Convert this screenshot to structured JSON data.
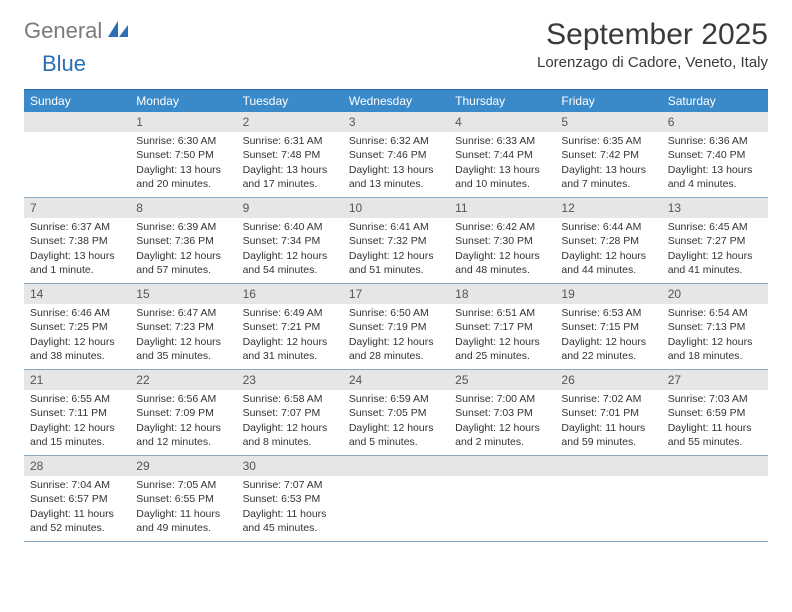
{
  "logo": {
    "text_gray": "General",
    "text_blue": "Blue"
  },
  "title": "September 2025",
  "location": "Lorenzago di Cadore, Veneto, Italy",
  "colors": {
    "header_bg": "#3a89c9",
    "header_text": "#ffffff",
    "daynum_bg": "#e6e6e6",
    "cell_border": "#8aa7c2",
    "logo_gray": "#7a7a7a",
    "logo_blue": "#2a6fb5"
  },
  "day_headers": [
    "Sunday",
    "Monday",
    "Tuesday",
    "Wednesday",
    "Thursday",
    "Friday",
    "Saturday"
  ],
  "leading_blanks": 1,
  "trailing_blanks": 4,
  "days": [
    {
      "n": "1",
      "sunrise": "Sunrise: 6:30 AM",
      "sunset": "Sunset: 7:50 PM",
      "daylight": "Daylight: 13 hours and 20 minutes."
    },
    {
      "n": "2",
      "sunrise": "Sunrise: 6:31 AM",
      "sunset": "Sunset: 7:48 PM",
      "daylight": "Daylight: 13 hours and 17 minutes."
    },
    {
      "n": "3",
      "sunrise": "Sunrise: 6:32 AM",
      "sunset": "Sunset: 7:46 PM",
      "daylight": "Daylight: 13 hours and 13 minutes."
    },
    {
      "n": "4",
      "sunrise": "Sunrise: 6:33 AM",
      "sunset": "Sunset: 7:44 PM",
      "daylight": "Daylight: 13 hours and 10 minutes."
    },
    {
      "n": "5",
      "sunrise": "Sunrise: 6:35 AM",
      "sunset": "Sunset: 7:42 PM",
      "daylight": "Daylight: 13 hours and 7 minutes."
    },
    {
      "n": "6",
      "sunrise": "Sunrise: 6:36 AM",
      "sunset": "Sunset: 7:40 PM",
      "daylight": "Daylight: 13 hours and 4 minutes."
    },
    {
      "n": "7",
      "sunrise": "Sunrise: 6:37 AM",
      "sunset": "Sunset: 7:38 PM",
      "daylight": "Daylight: 13 hours and 1 minute."
    },
    {
      "n": "8",
      "sunrise": "Sunrise: 6:39 AM",
      "sunset": "Sunset: 7:36 PM",
      "daylight": "Daylight: 12 hours and 57 minutes."
    },
    {
      "n": "9",
      "sunrise": "Sunrise: 6:40 AM",
      "sunset": "Sunset: 7:34 PM",
      "daylight": "Daylight: 12 hours and 54 minutes."
    },
    {
      "n": "10",
      "sunrise": "Sunrise: 6:41 AM",
      "sunset": "Sunset: 7:32 PM",
      "daylight": "Daylight: 12 hours and 51 minutes."
    },
    {
      "n": "11",
      "sunrise": "Sunrise: 6:42 AM",
      "sunset": "Sunset: 7:30 PM",
      "daylight": "Daylight: 12 hours and 48 minutes."
    },
    {
      "n": "12",
      "sunrise": "Sunrise: 6:44 AM",
      "sunset": "Sunset: 7:28 PM",
      "daylight": "Daylight: 12 hours and 44 minutes."
    },
    {
      "n": "13",
      "sunrise": "Sunrise: 6:45 AM",
      "sunset": "Sunset: 7:27 PM",
      "daylight": "Daylight: 12 hours and 41 minutes."
    },
    {
      "n": "14",
      "sunrise": "Sunrise: 6:46 AM",
      "sunset": "Sunset: 7:25 PM",
      "daylight": "Daylight: 12 hours and 38 minutes."
    },
    {
      "n": "15",
      "sunrise": "Sunrise: 6:47 AM",
      "sunset": "Sunset: 7:23 PM",
      "daylight": "Daylight: 12 hours and 35 minutes."
    },
    {
      "n": "16",
      "sunrise": "Sunrise: 6:49 AM",
      "sunset": "Sunset: 7:21 PM",
      "daylight": "Daylight: 12 hours and 31 minutes."
    },
    {
      "n": "17",
      "sunrise": "Sunrise: 6:50 AM",
      "sunset": "Sunset: 7:19 PM",
      "daylight": "Daylight: 12 hours and 28 minutes."
    },
    {
      "n": "18",
      "sunrise": "Sunrise: 6:51 AM",
      "sunset": "Sunset: 7:17 PM",
      "daylight": "Daylight: 12 hours and 25 minutes."
    },
    {
      "n": "19",
      "sunrise": "Sunrise: 6:53 AM",
      "sunset": "Sunset: 7:15 PM",
      "daylight": "Daylight: 12 hours and 22 minutes."
    },
    {
      "n": "20",
      "sunrise": "Sunrise: 6:54 AM",
      "sunset": "Sunset: 7:13 PM",
      "daylight": "Daylight: 12 hours and 18 minutes."
    },
    {
      "n": "21",
      "sunrise": "Sunrise: 6:55 AM",
      "sunset": "Sunset: 7:11 PM",
      "daylight": "Daylight: 12 hours and 15 minutes."
    },
    {
      "n": "22",
      "sunrise": "Sunrise: 6:56 AM",
      "sunset": "Sunset: 7:09 PM",
      "daylight": "Daylight: 12 hours and 12 minutes."
    },
    {
      "n": "23",
      "sunrise": "Sunrise: 6:58 AM",
      "sunset": "Sunset: 7:07 PM",
      "daylight": "Daylight: 12 hours and 8 minutes."
    },
    {
      "n": "24",
      "sunrise": "Sunrise: 6:59 AM",
      "sunset": "Sunset: 7:05 PM",
      "daylight": "Daylight: 12 hours and 5 minutes."
    },
    {
      "n": "25",
      "sunrise": "Sunrise: 7:00 AM",
      "sunset": "Sunset: 7:03 PM",
      "daylight": "Daylight: 12 hours and 2 minutes."
    },
    {
      "n": "26",
      "sunrise": "Sunrise: 7:02 AM",
      "sunset": "Sunset: 7:01 PM",
      "daylight": "Daylight: 11 hours and 59 minutes."
    },
    {
      "n": "27",
      "sunrise": "Sunrise: 7:03 AM",
      "sunset": "Sunset: 6:59 PM",
      "daylight": "Daylight: 11 hours and 55 minutes."
    },
    {
      "n": "28",
      "sunrise": "Sunrise: 7:04 AM",
      "sunset": "Sunset: 6:57 PM",
      "daylight": "Daylight: 11 hours and 52 minutes."
    },
    {
      "n": "29",
      "sunrise": "Sunrise: 7:05 AM",
      "sunset": "Sunset: 6:55 PM",
      "daylight": "Daylight: 11 hours and 49 minutes."
    },
    {
      "n": "30",
      "sunrise": "Sunrise: 7:07 AM",
      "sunset": "Sunset: 6:53 PM",
      "daylight": "Daylight: 11 hours and 45 minutes."
    }
  ]
}
